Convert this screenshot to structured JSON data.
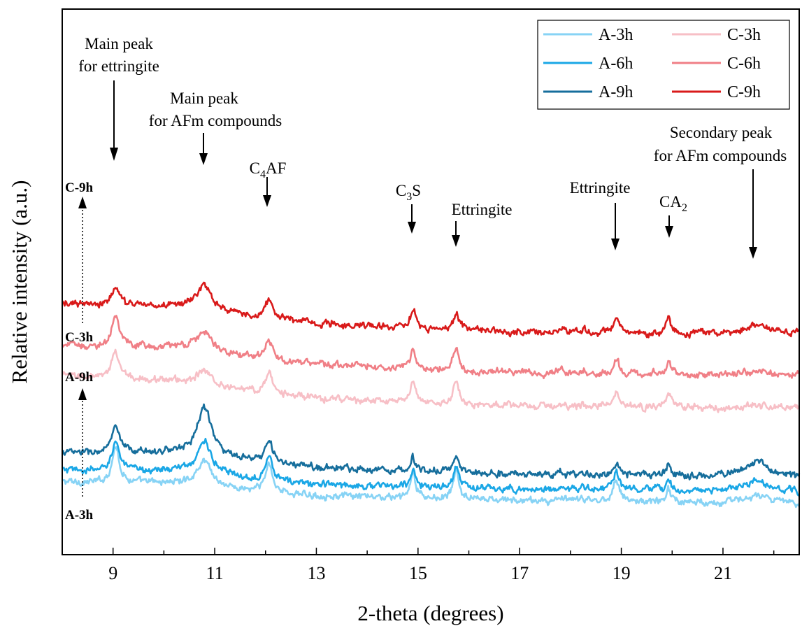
{
  "chart_data": {
    "type": "line",
    "title": "",
    "xlabel": "2-theta (degrees)",
    "ylabel": "Relative intensity (a.u.)",
    "xlim": [
      8,
      22.5
    ],
    "x_ticks": [
      9,
      11,
      13,
      15,
      17,
      19,
      21
    ],
    "y_ticks_shown": false,
    "grid": false,
    "legend_position": "top-right",
    "peaks": [
      {
        "x": 9.05,
        "w": 0.09,
        "type": "ettringite"
      },
      {
        "x": 10.8,
        "w": 0.17,
        "type": "afm"
      },
      {
        "x": 12.07,
        "w": 0.09,
        "type": "c4af"
      },
      {
        "x": 14.9,
        "w": 0.06,
        "type": "c3s"
      },
      {
        "x": 15.75,
        "w": 0.07,
        "type": "ettringite2"
      },
      {
        "x": 17.8,
        "w": 0.08,
        "type": "minor"
      },
      {
        "x": 18.25,
        "w": 0.06,
        "type": "minor"
      },
      {
        "x": 18.9,
        "w": 0.08,
        "type": "ettringite3"
      },
      {
        "x": 19.93,
        "w": 0.06,
        "type": "ca2"
      },
      {
        "x": 21.65,
        "w": 0.28,
        "type": "afm2"
      }
    ],
    "series": [
      {
        "name": "A-3h",
        "color": "#87d3f5",
        "baseline": [
          0.62,
          0.55,
          0.5,
          0.47,
          0.45,
          0.44,
          0.43
        ],
        "heights": {
          "ettringite": 1.45,
          "afm": 1.02,
          "c4af": 1.15,
          "c3s": 1.05,
          "ettringite2": 1.1,
          "ettringite3": 0.9,
          "ca2": 0.55,
          "afm2": 0.3,
          "minor": 0.12
        }
      },
      {
        "name": "A-6h",
        "color": "#1aa7e6",
        "baseline": [
          0.72,
          0.66,
          0.6,
          0.57,
          0.55,
          0.54,
          0.53
        ],
        "heights": {
          "ettringite": 1.25,
          "afm": 1.28,
          "c4af": 1.05,
          "c3s": 0.7,
          "ettringite2": 0.8,
          "ettringite3": 0.72,
          "ca2": 0.45,
          "afm2": 0.42,
          "minor": 0.12
        }
      },
      {
        "name": "A-9h",
        "color": "#166e9c",
        "baseline": [
          0.88,
          0.82,
          0.75,
          0.71,
          0.68,
          0.67,
          0.66
        ],
        "heights": {
          "ettringite": 1.05,
          "afm": 1.95,
          "c4af": 0.92,
          "c3s": 0.55,
          "ettringite2": 0.6,
          "ettringite3": 0.38,
          "ca2": 0.45,
          "afm2": 0.62,
          "minor": 0.08
        }
      },
      {
        "name": "C-3h",
        "color": "#f7bfc6",
        "baseline": [
          1.55,
          1.45,
          1.36,
          1.3,
          1.28,
          1.27,
          1.27
        ],
        "heights": {
          "ettringite": 1.1,
          "afm": 0.5,
          "c4af": 0.8,
          "c3s": 0.95,
          "ettringite2": 0.95,
          "ettringite3": 0.62,
          "ca2": 0.65,
          "afm2": 0.12,
          "minor": 0.1
        }
      },
      {
        "name": "C-6h",
        "color": "#f07f86",
        "baseline": [
          1.82,
          1.74,
          1.66,
          1.6,
          1.57,
          1.56,
          1.56
        ],
        "heights": {
          "ettringite": 1.25,
          "afm": 0.82,
          "c4af": 0.75,
          "c3s": 0.85,
          "ettringite2": 0.85,
          "ettringite3": 0.55,
          "ca2": 0.5,
          "afm2": 0.18,
          "minor": 0.12
        }
      },
      {
        "name": "C-9h",
        "color": "#d91a1a",
        "baseline": [
          2.18,
          2.1,
          2.02,
          1.96,
          1.93,
          1.92,
          1.92
        ],
        "heights": {
          "ettringite": 0.78,
          "afm": 1.0,
          "c4af": 0.72,
          "c3s": 0.75,
          "ettringite2": 0.65,
          "ettringite3": 0.45,
          "ca2": 0.62,
          "afm2": 0.35,
          "minor": 0.12
        }
      }
    ],
    "annotations": [
      {
        "lines": [
          "Main peak",
          "for ettringite"
        ],
        "x": 9.05
      },
      {
        "lines": [
          "Main peak",
          "for AFm compounds"
        ],
        "x": 10.8
      },
      {
        "lines": [
          "C4AF"
        ],
        "x": 12.07
      },
      {
        "lines": [
          "C3S"
        ],
        "x": 14.9
      },
      {
        "lines": [
          "Ettringite"
        ],
        "x": 15.75
      },
      {
        "lines": [
          "Ettringite"
        ],
        "x": 18.9
      },
      {
        "lines": [
          "CA2"
        ],
        "x": 19.93
      },
      {
        "lines": [
          "Secondary peak",
          "for AFm compounds"
        ],
        "x": 21.65
      }
    ],
    "side_labels": [
      "C-9h",
      "C-3h",
      "A-9h",
      "A-3h"
    ]
  }
}
